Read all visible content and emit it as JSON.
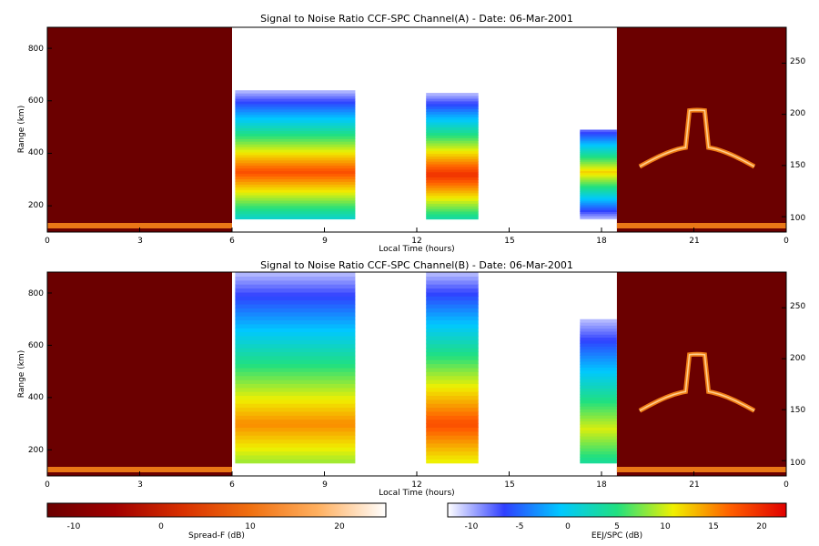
{
  "figure": {
    "colors": {
      "spread_bg": "#6b0000",
      "spread_hot": "#ff8c1a",
      "eej_white": "#ffffff"
    }
  },
  "chart_data": [
    {
      "type": "heatmap",
      "title": "Signal to Noise Ratio CCF-SPC Channel(A) - Date: 06-Mar-2001",
      "xlabel": "Local Time (hours)",
      "ylabel": "Range (km)",
      "x_ticks": [
        "0",
        "3",
        "6",
        "9",
        "12",
        "15",
        "18",
        "21",
        "0"
      ],
      "y_ticks_left": [
        "200",
        "400",
        "600",
        "800"
      ],
      "y_ticks_right": [
        "100",
        "150",
        "200",
        "250"
      ],
      "xlim": [
        0,
        24
      ],
      "ylim": [
        100,
        880
      ],
      "ylim_right": [
        85,
        285
      ],
      "grid": false,
      "regions": [
        {
          "name": "Spread-F",
          "x_range": [
            0,
            6
          ],
          "colorbar": "Spread-F"
        },
        {
          "name": "EEJ/SPC",
          "x_range": [
            6,
            18.5
          ],
          "colorbar": "EEJ/SPC",
          "blocks": [
            {
              "x_range": [
                6.1,
                10
              ],
              "range_km": [
                150,
                640
              ],
              "peak_db": 18,
              "peak_range_km": 330
            },
            {
              "x_range": [
                12.3,
                14
              ],
              "range_km": [
                150,
                630
              ],
              "peak_db": 20,
              "peak_range_km": 320
            },
            {
              "x_range": [
                17.3,
                18.5
              ],
              "range_km": [
                150,
                490
              ],
              "peak_db": 12,
              "peak_range_km": 330
            }
          ]
        },
        {
          "name": "Spread-F",
          "x_range": [
            18.5,
            24
          ],
          "colorbar": "Spread-F"
        }
      ]
    },
    {
      "type": "heatmap",
      "title": "Signal to Noise Ratio CCF-SPC Channel(B) - Date: 06-Mar-2001",
      "xlabel": "Local Time (hours)",
      "ylabel": "Range (km)",
      "x_ticks": [
        "0",
        "3",
        "6",
        "9",
        "12",
        "15",
        "18",
        "21",
        "0"
      ],
      "y_ticks_left": [
        "200",
        "400",
        "600",
        "800"
      ],
      "y_ticks_right": [
        "100",
        "150",
        "200",
        "250"
      ],
      "xlim": [
        0,
        24
      ],
      "ylim": [
        100,
        880
      ],
      "ylim_right": [
        85,
        285
      ],
      "grid": false,
      "regions": [
        {
          "name": "Spread-F",
          "x_range": [
            0,
            6
          ],
          "colorbar": "Spread-F"
        },
        {
          "name": "EEJ/SPC",
          "x_range": [
            6,
            18.5
          ],
          "colorbar": "EEJ/SPC",
          "blocks": [
            {
              "x_range": [
                6.1,
                10
              ],
              "range_km": [
                150,
                880
              ],
              "peak_db": 15,
              "peak_range_km": 300
            },
            {
              "x_range": [
                12.3,
                14
              ],
              "range_km": [
                150,
                880
              ],
              "peak_db": 18,
              "peak_range_km": 300
            },
            {
              "x_range": [
                17.3,
                18.5
              ],
              "range_km": [
                150,
                700
              ],
              "peak_db": 10,
              "peak_range_km": 280
            }
          ]
        },
        {
          "name": "Spread-F",
          "x_range": [
            18.5,
            24
          ],
          "colorbar": "Spread-F"
        }
      ]
    }
  ],
  "colorbars": [
    {
      "label": "Spread-F (dB)",
      "range": [
        -13,
        25
      ],
      "ticks": [
        "-10",
        "0",
        "10",
        "20"
      ],
      "stops": [
        "#6b0000",
        "#a00000",
        "#d83000",
        "#f07010",
        "#ffb060",
        "#ffffff"
      ]
    },
    {
      "label": "EEJ/SPC (dB)",
      "range": [
        -14,
        23
      ],
      "ticks": [
        "-10",
        "-5",
        "0",
        "5",
        "10",
        "15",
        "20"
      ],
      "stops": [
        "#ffffff",
        "#3040ff",
        "#00c8ff",
        "#20e080",
        "#f0f000",
        "#ff6000",
        "#e00000"
      ]
    }
  ]
}
